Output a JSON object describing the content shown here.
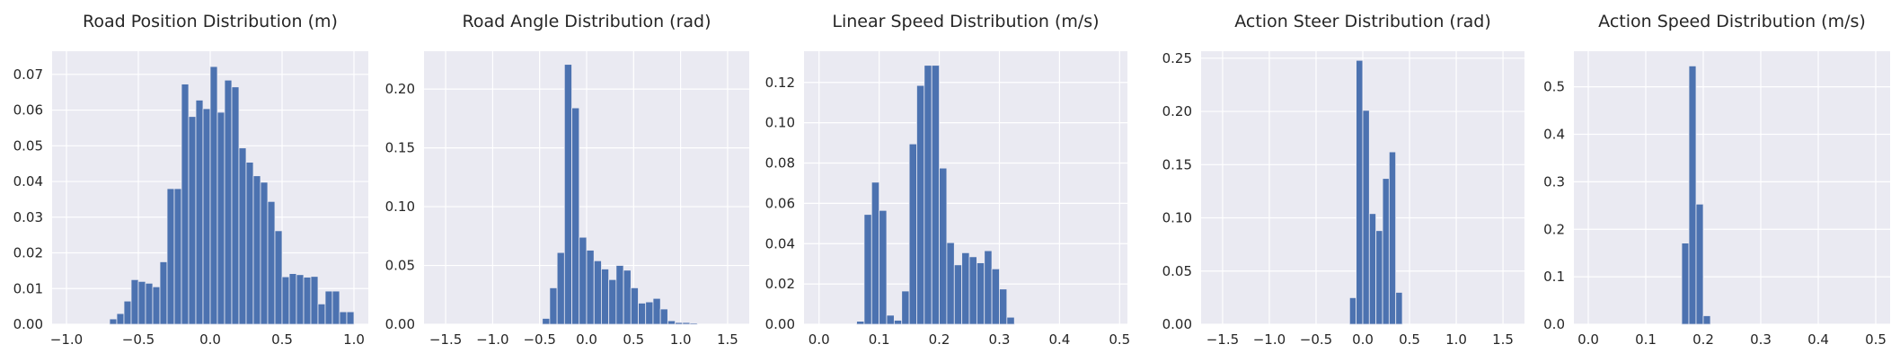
{
  "chart_data": [
    {
      "type": "bar",
      "title": "Road Position Distribution (m)",
      "xlim": [
        -1.1,
        1.1
      ],
      "ylim": [
        0,
        0.0765
      ],
      "xticks": [
        -1.0,
        -0.5,
        0.0,
        0.5,
        1.0
      ],
      "xtick_labels": [
        "−1.0",
        "−0.5",
        "0.0",
        "0.5",
        "1.0"
      ],
      "yticks": [
        0,
        0.01,
        0.02,
        0.03,
        0.04,
        0.05,
        0.06,
        0.07
      ],
      "ytick_labels": [
        "0.00",
        "0.01",
        "0.02",
        "0.03",
        "0.04",
        "0.05",
        "0.06",
        "0.07"
      ],
      "bin_width": 0.05,
      "bins_start": [
        -0.7,
        -0.65,
        -0.6,
        -0.55,
        -0.5,
        -0.45,
        -0.4,
        -0.35,
        -0.3,
        -0.25,
        -0.2,
        -0.15,
        -0.1,
        -0.05,
        0.0,
        0.05,
        0.1,
        0.15,
        0.2,
        0.25,
        0.3,
        0.35,
        0.4,
        0.45,
        0.5,
        0.55,
        0.6,
        0.65,
        0.7,
        0.75,
        0.8,
        0.85,
        0.9,
        0.95
      ],
      "values": [
        0.0015,
        0.003,
        0.0065,
        0.0125,
        0.012,
        0.0115,
        0.0105,
        0.0175,
        0.038,
        0.038,
        0.0673,
        0.0582,
        0.0628,
        0.0604,
        0.0722,
        0.0594,
        0.0684,
        0.0665,
        0.0494,
        0.0454,
        0.0416,
        0.0398,
        0.0344,
        0.0262,
        0.0133,
        0.0142,
        0.0139,
        0.0132,
        0.0134,
        0.0057,
        0.0093,
        0.0093,
        0.0035,
        0.0035
      ],
      "grid": true
    },
    {
      "type": "bar",
      "title": "Road Angle Distribution (rad)",
      "xlim": [
        -1.73,
        1.73
      ],
      "ylim": [
        0,
        0.2322
      ],
      "xticks": [
        -1.5,
        -1.0,
        -0.5,
        0.0,
        0.5,
        1.0,
        1.5
      ],
      "xtick_labels": [
        "−1.5",
        "−1.0",
        "−0.5",
        "0.0",
        "0.5",
        "1.0",
        "1.5"
      ],
      "yticks": [
        0,
        0.05,
        0.1,
        0.15,
        0.2
      ],
      "ytick_labels": [
        "0.00",
        "0.05",
        "0.10",
        "0.15",
        "0.20"
      ],
      "bin_width": 0.0785,
      "bins_start": [
        -0.471,
        -0.393,
        -0.314,
        -0.236,
        -0.157,
        -0.079,
        0.0,
        0.079,
        0.157,
        0.236,
        0.314,
        0.393,
        0.471,
        0.55,
        0.628,
        0.707,
        0.785,
        0.864,
        0.942,
        1.021,
        1.099
      ],
      "values": [
        0.005,
        0.031,
        0.061,
        0.221,
        0.184,
        0.074,
        0.063,
        0.054,
        0.047,
        0.038,
        0.05,
        0.046,
        0.031,
        0.018,
        0.019,
        0.022,
        0.013,
        0.003,
        0.0015,
        0.0015,
        0.001
      ],
      "grid": true
    },
    {
      "type": "bar",
      "title": "Linear Speed Distribution (m/s)",
      "xlim": [
        -0.025,
        0.513
      ],
      "ylim": [
        0,
        0.1355
      ],
      "xticks": [
        0.0,
        0.1,
        0.2,
        0.3,
        0.4,
        0.5
      ],
      "xtick_labels": [
        "0.0",
        "0.1",
        "0.2",
        "0.3",
        "0.4",
        "0.5"
      ],
      "yticks": [
        0,
        0.02,
        0.04,
        0.06,
        0.08,
        0.1,
        0.12
      ],
      "ytick_labels": [
        "0.00",
        "0.02",
        "0.04",
        "0.06",
        "0.08",
        "0.10",
        "0.12"
      ],
      "bin_width": 0.0125,
      "bins_start": [
        0.0625,
        0.075,
        0.0875,
        0.1,
        0.1125,
        0.125,
        0.1375,
        0.15,
        0.1625,
        0.175,
        0.1875,
        0.2,
        0.2125,
        0.225,
        0.2375,
        0.25,
        0.2625,
        0.275,
        0.2875,
        0.3,
        0.3125
      ],
      "values": [
        0.0015,
        0.0545,
        0.0705,
        0.0565,
        0.0045,
        0.002,
        0.0165,
        0.0895,
        0.1185,
        0.1285,
        0.1285,
        0.0775,
        0.0405,
        0.0295,
        0.0355,
        0.0335,
        0.0305,
        0.0365,
        0.0275,
        0.0175,
        0.0035
      ],
      "grid": true
    },
    {
      "type": "bar",
      "title": "Action Steer Distribution (rad)",
      "xlim": [
        -1.73,
        1.73
      ],
      "ylim": [
        0,
        0.2566
      ],
      "xticks": [
        -1.5,
        -1.0,
        -0.5,
        0.0,
        0.5,
        1.0,
        1.5
      ],
      "xtick_labels": [
        "−1.5",
        "−1.0",
        "−0.5",
        "0.0",
        "0.5",
        "1.0",
        "1.5"
      ],
      "yticks": [
        0,
        0.05,
        0.1,
        0.15,
        0.2,
        0.25
      ],
      "ytick_labels": [
        "0.00",
        "0.05",
        "0.10",
        "0.15",
        "0.20",
        "0.25"
      ],
      "bin_width": 0.07,
      "bins_start": [
        -0.141,
        -0.071,
        0.0,
        0.07,
        0.141,
        0.212,
        0.282,
        0.353,
        0.424
      ],
      "values": [
        0.025,
        0.248,
        0.201,
        0.104,
        0.088,
        0.137,
        0.162,
        0.03,
        0.0
      ],
      "grid": true
    },
    {
      "type": "bar",
      "title": "Action Speed Distribution (m/s)",
      "xlim": [
        -0.025,
        0.525
      ],
      "ylim": [
        0,
        0.575
      ],
      "xticks": [
        0.0,
        0.1,
        0.2,
        0.3,
        0.4,
        0.5
      ],
      "xtick_labels": [
        "0.0",
        "0.1",
        "0.2",
        "0.3",
        "0.4",
        "0.5"
      ],
      "yticks": [
        0,
        0.1,
        0.2,
        0.3,
        0.4,
        0.5
      ],
      "ytick_labels": [
        "0.0",
        "0.1",
        "0.2",
        "0.3",
        "0.4",
        "0.5"
      ],
      "bin_width": 0.0125,
      "bins_start": [
        0.1625,
        0.175,
        0.1875,
        0.2
      ],
      "values": [
        0.171,
        0.544,
        0.253,
        0.018
      ],
      "grid": true
    }
  ],
  "style": {
    "bar_color": "#4c72b0",
    "panel_background": "#eaeaf2",
    "grid_color": "#ffffff",
    "text_color": "#262626"
  }
}
